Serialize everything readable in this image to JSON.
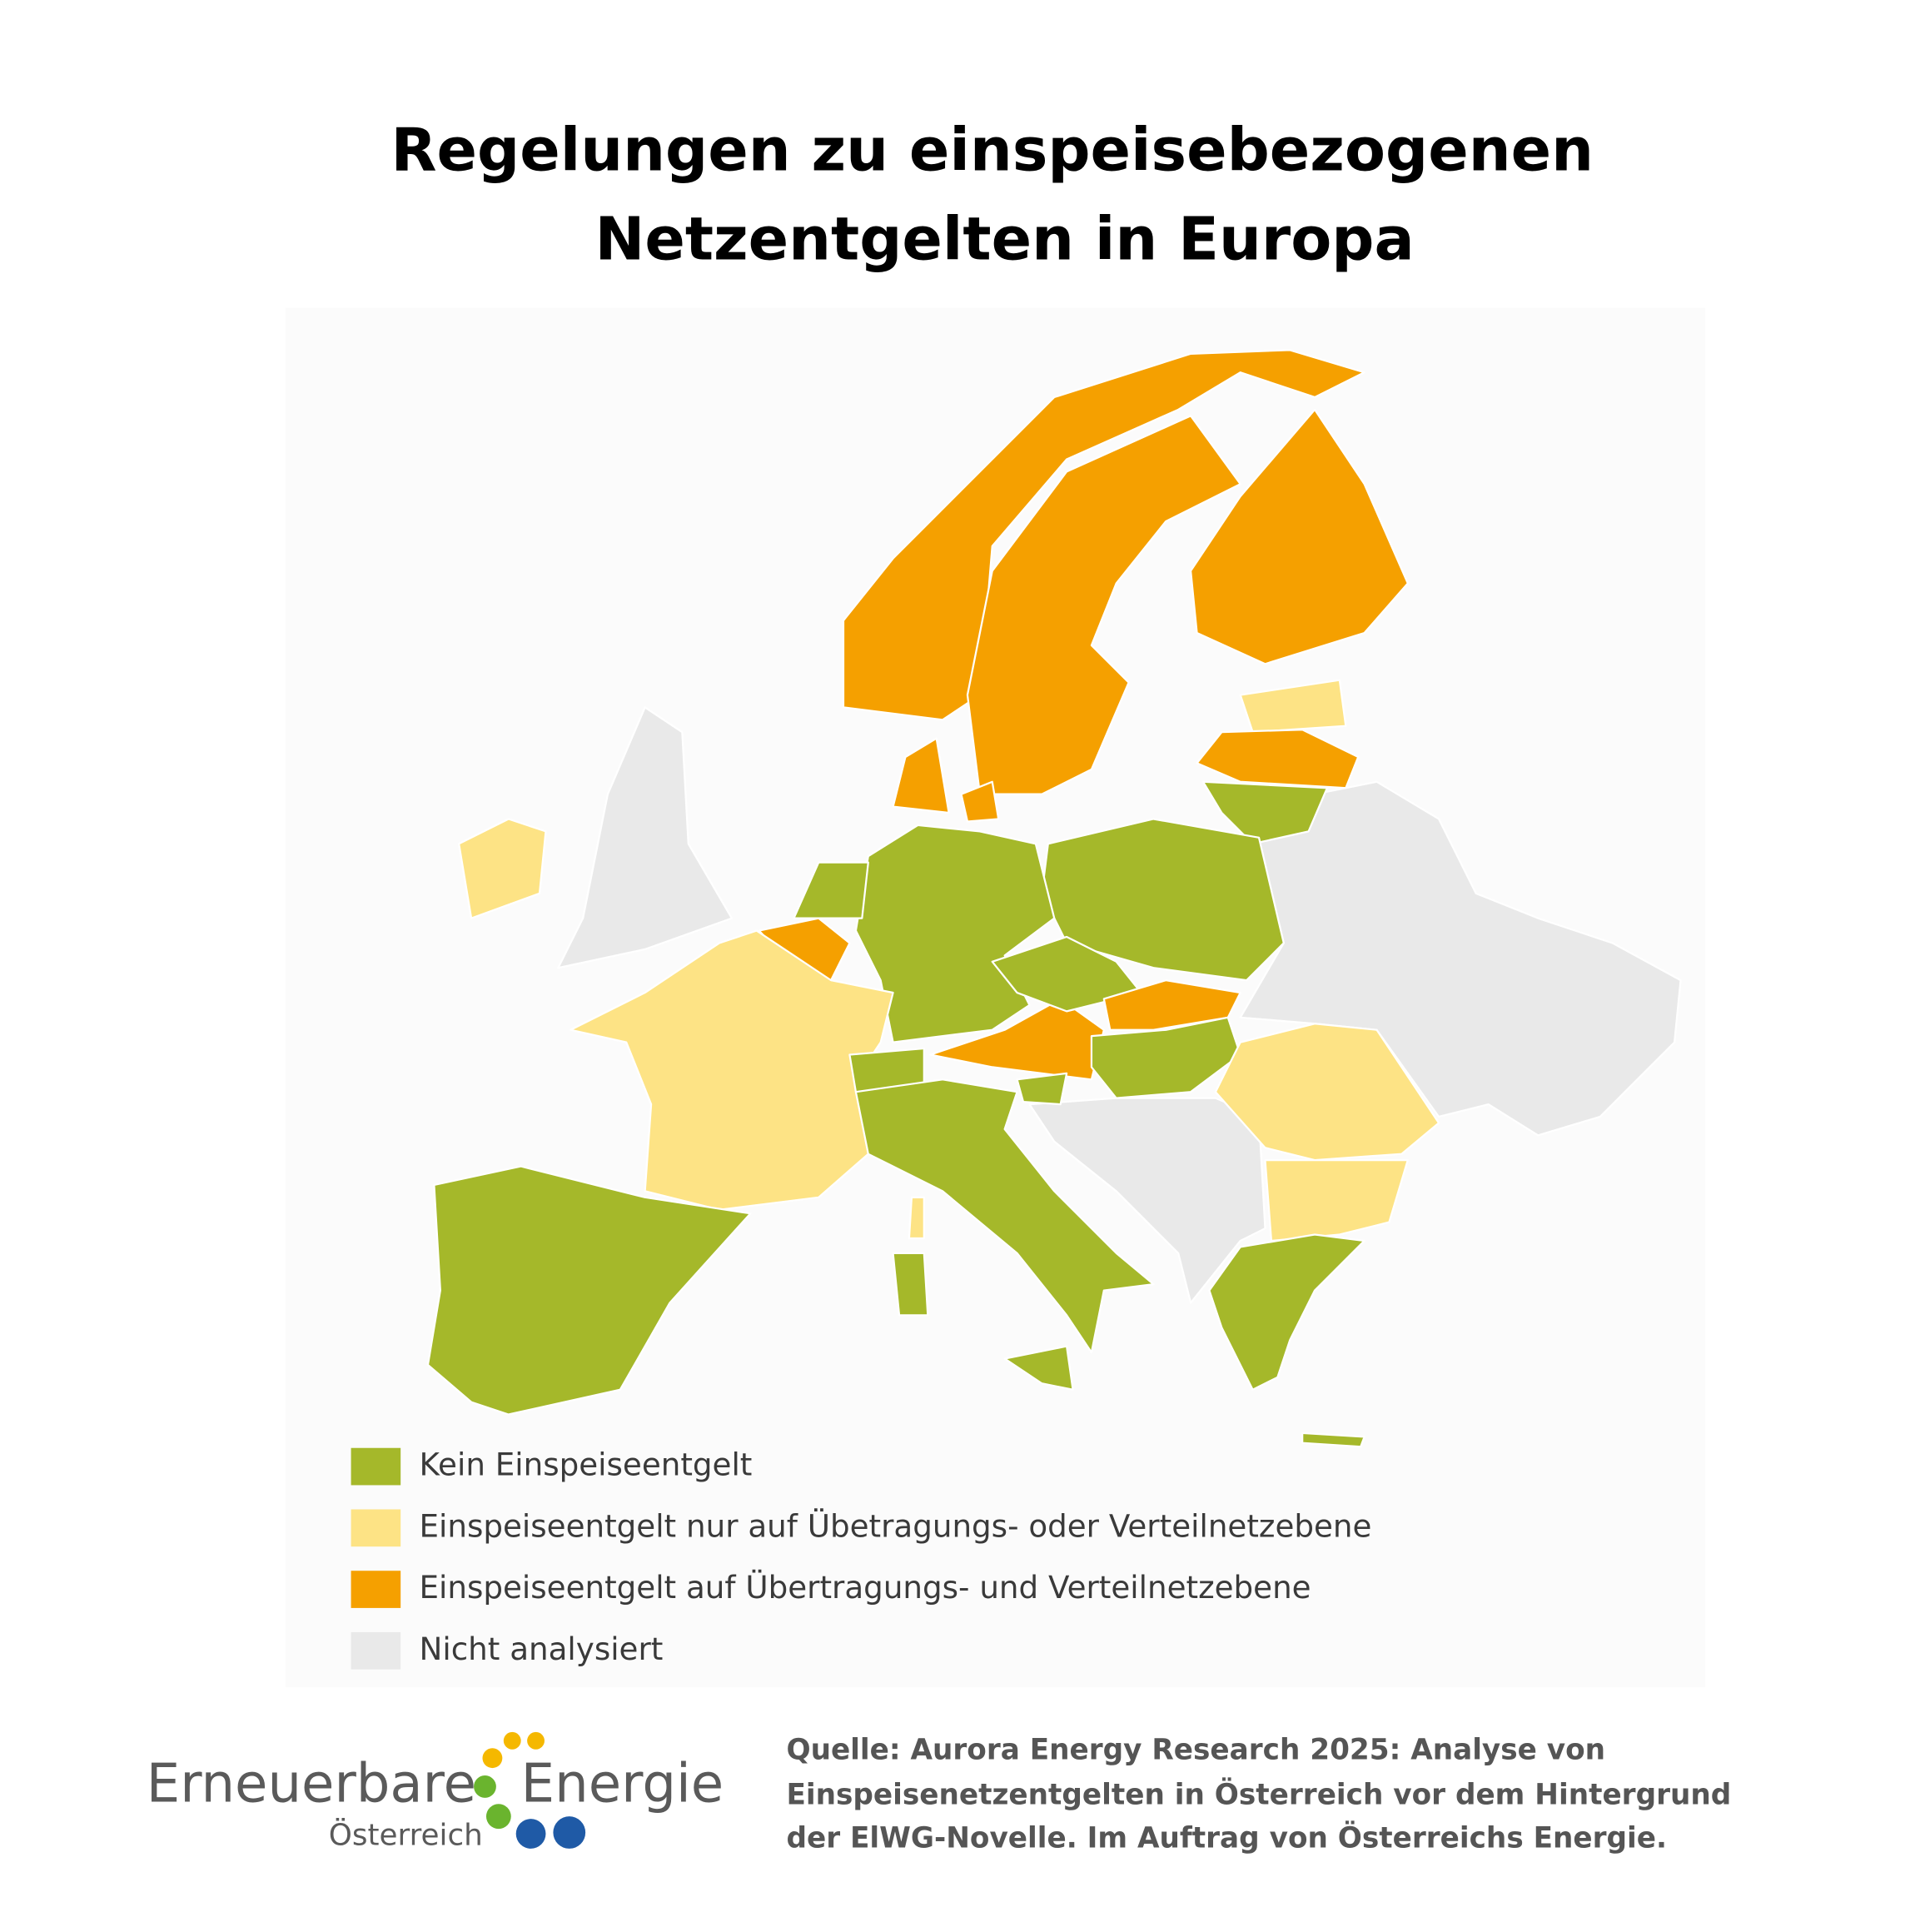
{
  "title_lines": [
    "Regelungen zu einspeisebezogenen",
    "Netzentgelten in Europa"
  ],
  "legend": [
    {
      "label": "Kein Einspeiseentgelt",
      "color": "#a5b82a"
    },
    {
      "label": "Einspeiseentgelt nur auf Übetragungs- oder Verteilnetzebene",
      "color": "#fde385"
    },
    {
      "label": "Einspeiseentgelt auf Übertragungs- und Verteilnetzebene",
      "color": "#f5a000"
    },
    {
      "label": "Nicht analysiert",
      "color": "#e9e9e9"
    }
  ],
  "logo": {
    "name_left": "Erneuerbare",
    "name_right": "Energie",
    "subtitle": "Österreich"
  },
  "source_lines": [
    "Quelle: Aurora Energy Research 2025: Analyse von",
    "Einspeisenetzentgelten in Österreich vor dem Hintergrund",
    "der ElWG-Novelle. Im Auftrag von Österreichs Energie."
  ]
}
